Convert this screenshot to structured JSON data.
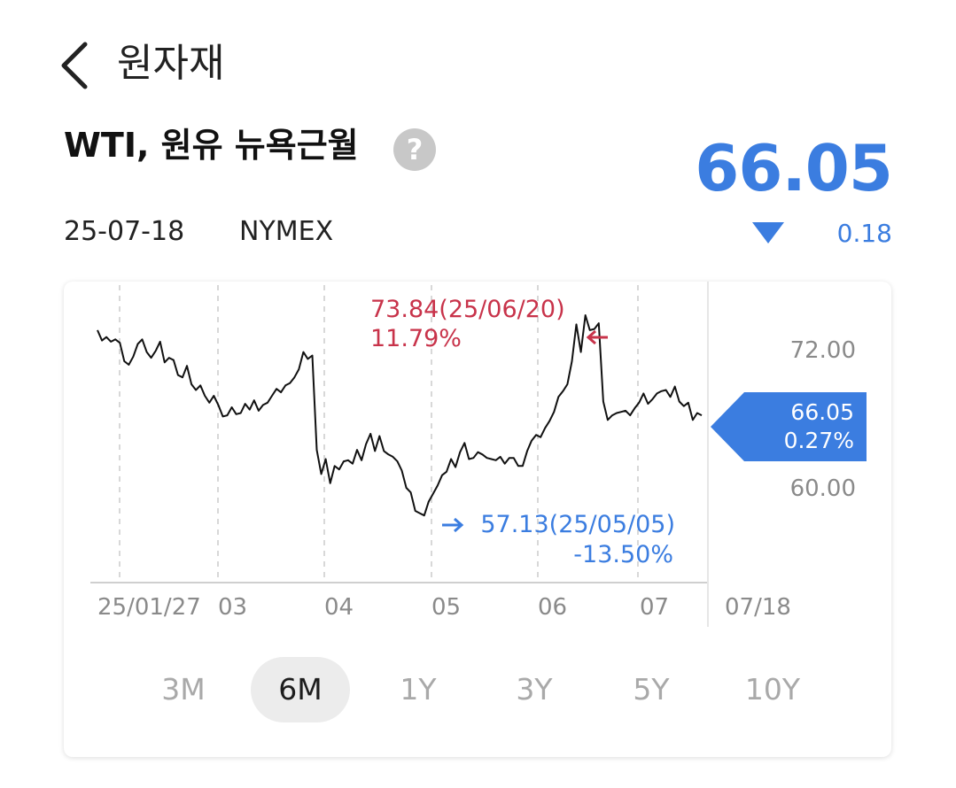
{
  "header": {
    "title": "원자재"
  },
  "instrument": {
    "name": "WTI, 원유 뉴욕근월",
    "help": "?",
    "date": "25-07-18",
    "exchange": "NYMEX",
    "price": "66.05",
    "change": "0.18",
    "direction": "down"
  },
  "colors": {
    "accent": "#3b7de0",
    "high": "#c8334a",
    "line": "#111111",
    "grid": "#d8d8d8",
    "axis_text": "#8a8a8a"
  },
  "chart_data": {
    "type": "line",
    "x_tick_labels": [
      "25/01/27",
      "03",
      "04",
      "05",
      "06",
      "07",
      "07/18"
    ],
    "y_tick_labels": [
      "72.00",
      "60.00"
    ],
    "current_badge": {
      "price": "66.05",
      "percent": "0.27%"
    },
    "high_annotation": {
      "line1": "73.84(25/06/20)",
      "line2": "11.79%"
    },
    "low_annotation": {
      "line1": "57.13(25/05/05)",
      "line2": "-13.50%"
    },
    "ylim": [
      52,
      77
    ],
    "high": 73.84,
    "low": 57.13,
    "last": 66.05,
    "series": [
      {
        "values": [
          73.7,
          72.8,
          73.1,
          72.7,
          72.9,
          72.6,
          71.0,
          70.7,
          71.4,
          72.5,
          72.9,
          71.8,
          71.3,
          71.9,
          72.7,
          70.9,
          71.3,
          71.1,
          69.8,
          69.6,
          70.6,
          69.0,
          68.5,
          68.9,
          68.0,
          67.4,
          68.0,
          67.2,
          66.2,
          66.3,
          67.0,
          66.4,
          66.5,
          67.3,
          66.8,
          67.6,
          66.7,
          67.2,
          67.4,
          68.0,
          68.6,
          68.3,
          68.9,
          69.1,
          69.6,
          70.3,
          71.8,
          71.2,
          71.5,
          63.3,
          61.2,
          62.5,
          60.4,
          61.9,
          61.6,
          62.3,
          62.4,
          62.1,
          63.3,
          62.4,
          63.8,
          64.7,
          63.2,
          64.5,
          63.2,
          62.9,
          62.7,
          62.3,
          61.5,
          60.0,
          59.6,
          58.0,
          57.8,
          57.6,
          58.8,
          59.5,
          60.2,
          61.1,
          61.4,
          62.5,
          61.8,
          63.1,
          63.9,
          62.5,
          62.6,
          63.1,
          62.9,
          62.6,
          62.5,
          62.4,
          62.7,
          62.1,
          62.6,
          62.6,
          61.9,
          61.9,
          63.2,
          64.1,
          64.6,
          64.4,
          65.2,
          65.8,
          66.6,
          67.9,
          68.4,
          69.0,
          71.0,
          74.2,
          71.8,
          75.0,
          73.7,
          73.8,
          74.3,
          67.5,
          65.9,
          66.3,
          66.5,
          66.6,
          66.7,
          66.3,
          66.9,
          67.4,
          68.2,
          67.3,
          67.7,
          68.2,
          68.4,
          68.5,
          67.9,
          68.8,
          67.5,
          67.1,
          67.4,
          65.9,
          66.5,
          66.3
        ]
      }
    ]
  },
  "ranges": [
    "3M",
    "6M",
    "1Y",
    "3Y",
    "5Y",
    "10Y"
  ],
  "selected_range": "6M"
}
